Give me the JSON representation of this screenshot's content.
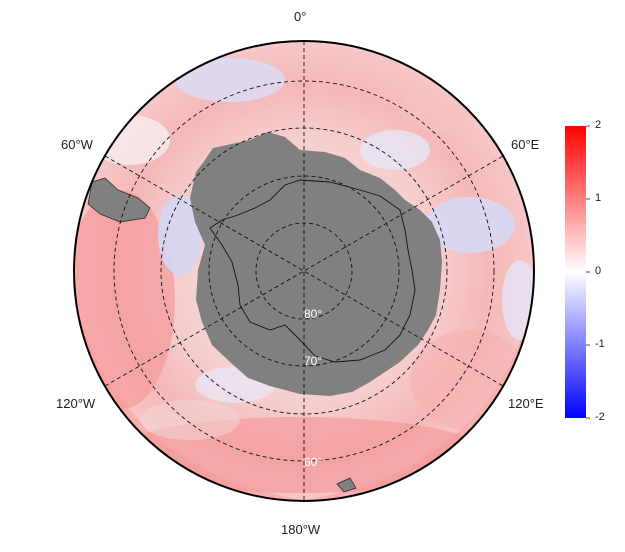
{
  "map": {
    "projection": "south-polar-stereographic",
    "longitude_labels": {
      "top": "0°",
      "upper_left": "60°W",
      "upper_right": "60°E",
      "lower_left": "120°W",
      "lower_right": "120°E",
      "bottom": "180°W"
    },
    "latitude_labels": [
      "80°",
      "70°",
      "60°"
    ],
    "land_color": "#808080",
    "ocean_field_description": "anomaly field, mostly positive (red), weak negatives (blue)"
  },
  "colorbar": {
    "ticks": [
      "2",
      "1",
      "0",
      "-1",
      "-2"
    ],
    "range": [
      -2,
      2
    ],
    "low_color": "#0000ff",
    "mid_color": "#ffffff",
    "high_color": "#ff0000"
  }
}
